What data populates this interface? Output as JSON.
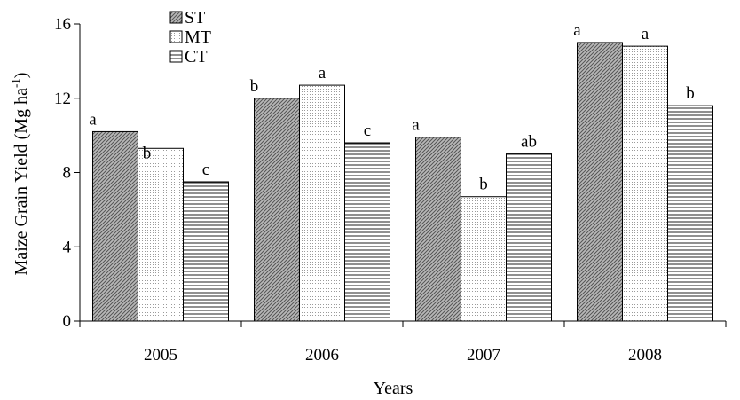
{
  "chart_data": {
    "type": "bar",
    "categories": [
      "2005",
      "2006",
      "2007",
      "2008"
    ],
    "series": [
      {
        "name": "ST",
        "values": [
          10.2,
          12.0,
          9.9,
          15.0
        ],
        "letters": [
          "a",
          "b",
          "a",
          "a"
        ]
      },
      {
        "name": "MT",
        "values": [
          9.3,
          12.7,
          6.7,
          14.8
        ],
        "letters": [
          "b",
          "a",
          "b",
          "a"
        ]
      },
      {
        "name": "CT",
        "values": [
          7.5,
          9.6,
          9.0,
          11.6
        ],
        "letters": [
          "c",
          "c",
          "ab",
          "b"
        ]
      }
    ],
    "xlabel": "Years",
    "ylabel": "Maize Grain Yield (Mg ha",
    "ylabel_superscript": "-1",
    "ylabel_close": ")",
    "ylim": [
      0,
      16
    ],
    "yticks": [
      "0",
      "4",
      "8",
      "12",
      "16"
    ],
    "legend_position": "top-left",
    "grid": false,
    "colors": {
      "ST": "#9a9a9a",
      "MT": "#f1f1f1",
      "CT": "#ffffff",
      "stroke": "#000000"
    }
  }
}
